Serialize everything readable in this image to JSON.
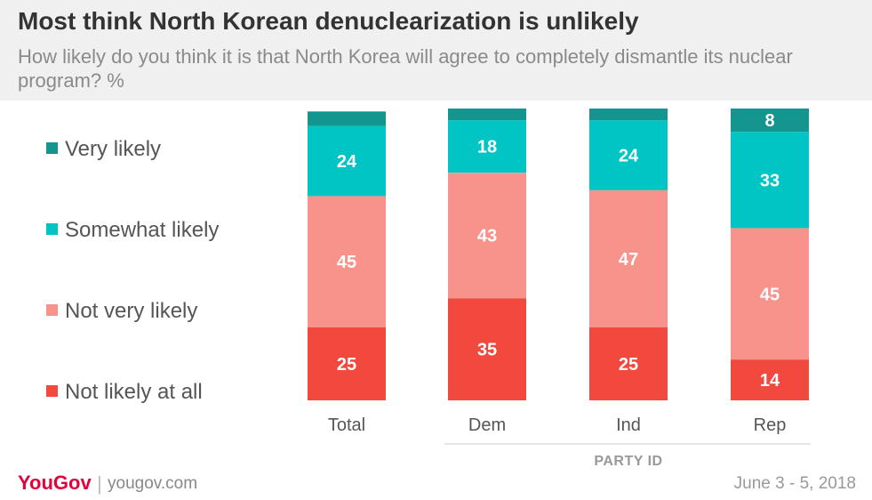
{
  "header": {
    "title": "Most think North Korean denuclearization is unlikely",
    "subtitle": "How likely do you think it is that North Korea will agree to completely dismantle its nuclear program? %"
  },
  "legend": [
    {
      "label": "Very likely",
      "color": "#14958f"
    },
    {
      "label": "Somewhat likely",
      "color": "#00c5c4"
    },
    {
      "label": "Not very likely",
      "color": "#f7938a"
    },
    {
      "label": "Not likely at all",
      "color": "#f2493f"
    }
  ],
  "chart_data": {
    "type": "bar",
    "stacked": true,
    "orientation": "vertical",
    "categories": [
      "Total",
      "Dem",
      "Ind",
      "Rep"
    ],
    "group_label": "PARTY ID",
    "series": [
      {
        "name": "Very likely",
        "color": "#14958f",
        "values": [
          5,
          4,
          4,
          8
        ],
        "labels": [
          "",
          "",
          "",
          "8"
        ]
      },
      {
        "name": "Somewhat likely",
        "color": "#00c5c4",
        "values": [
          24,
          18,
          24,
          33
        ],
        "labels": [
          "24",
          "18",
          "24",
          "33"
        ]
      },
      {
        "name": "Not very likely",
        "color": "#f7938a",
        "values": [
          45,
          43,
          47,
          45
        ],
        "labels": [
          "45",
          "43",
          "47",
          "45"
        ]
      },
      {
        "name": "Not likely at all",
        "color": "#f2493f",
        "values": [
          25,
          35,
          25,
          14
        ],
        "labels": [
          "25",
          "35",
          "25",
          "14"
        ]
      }
    ]
  },
  "footer": {
    "brand": "YouGov",
    "site": "yougov.com",
    "date": "June 3 - 5, 2018"
  }
}
